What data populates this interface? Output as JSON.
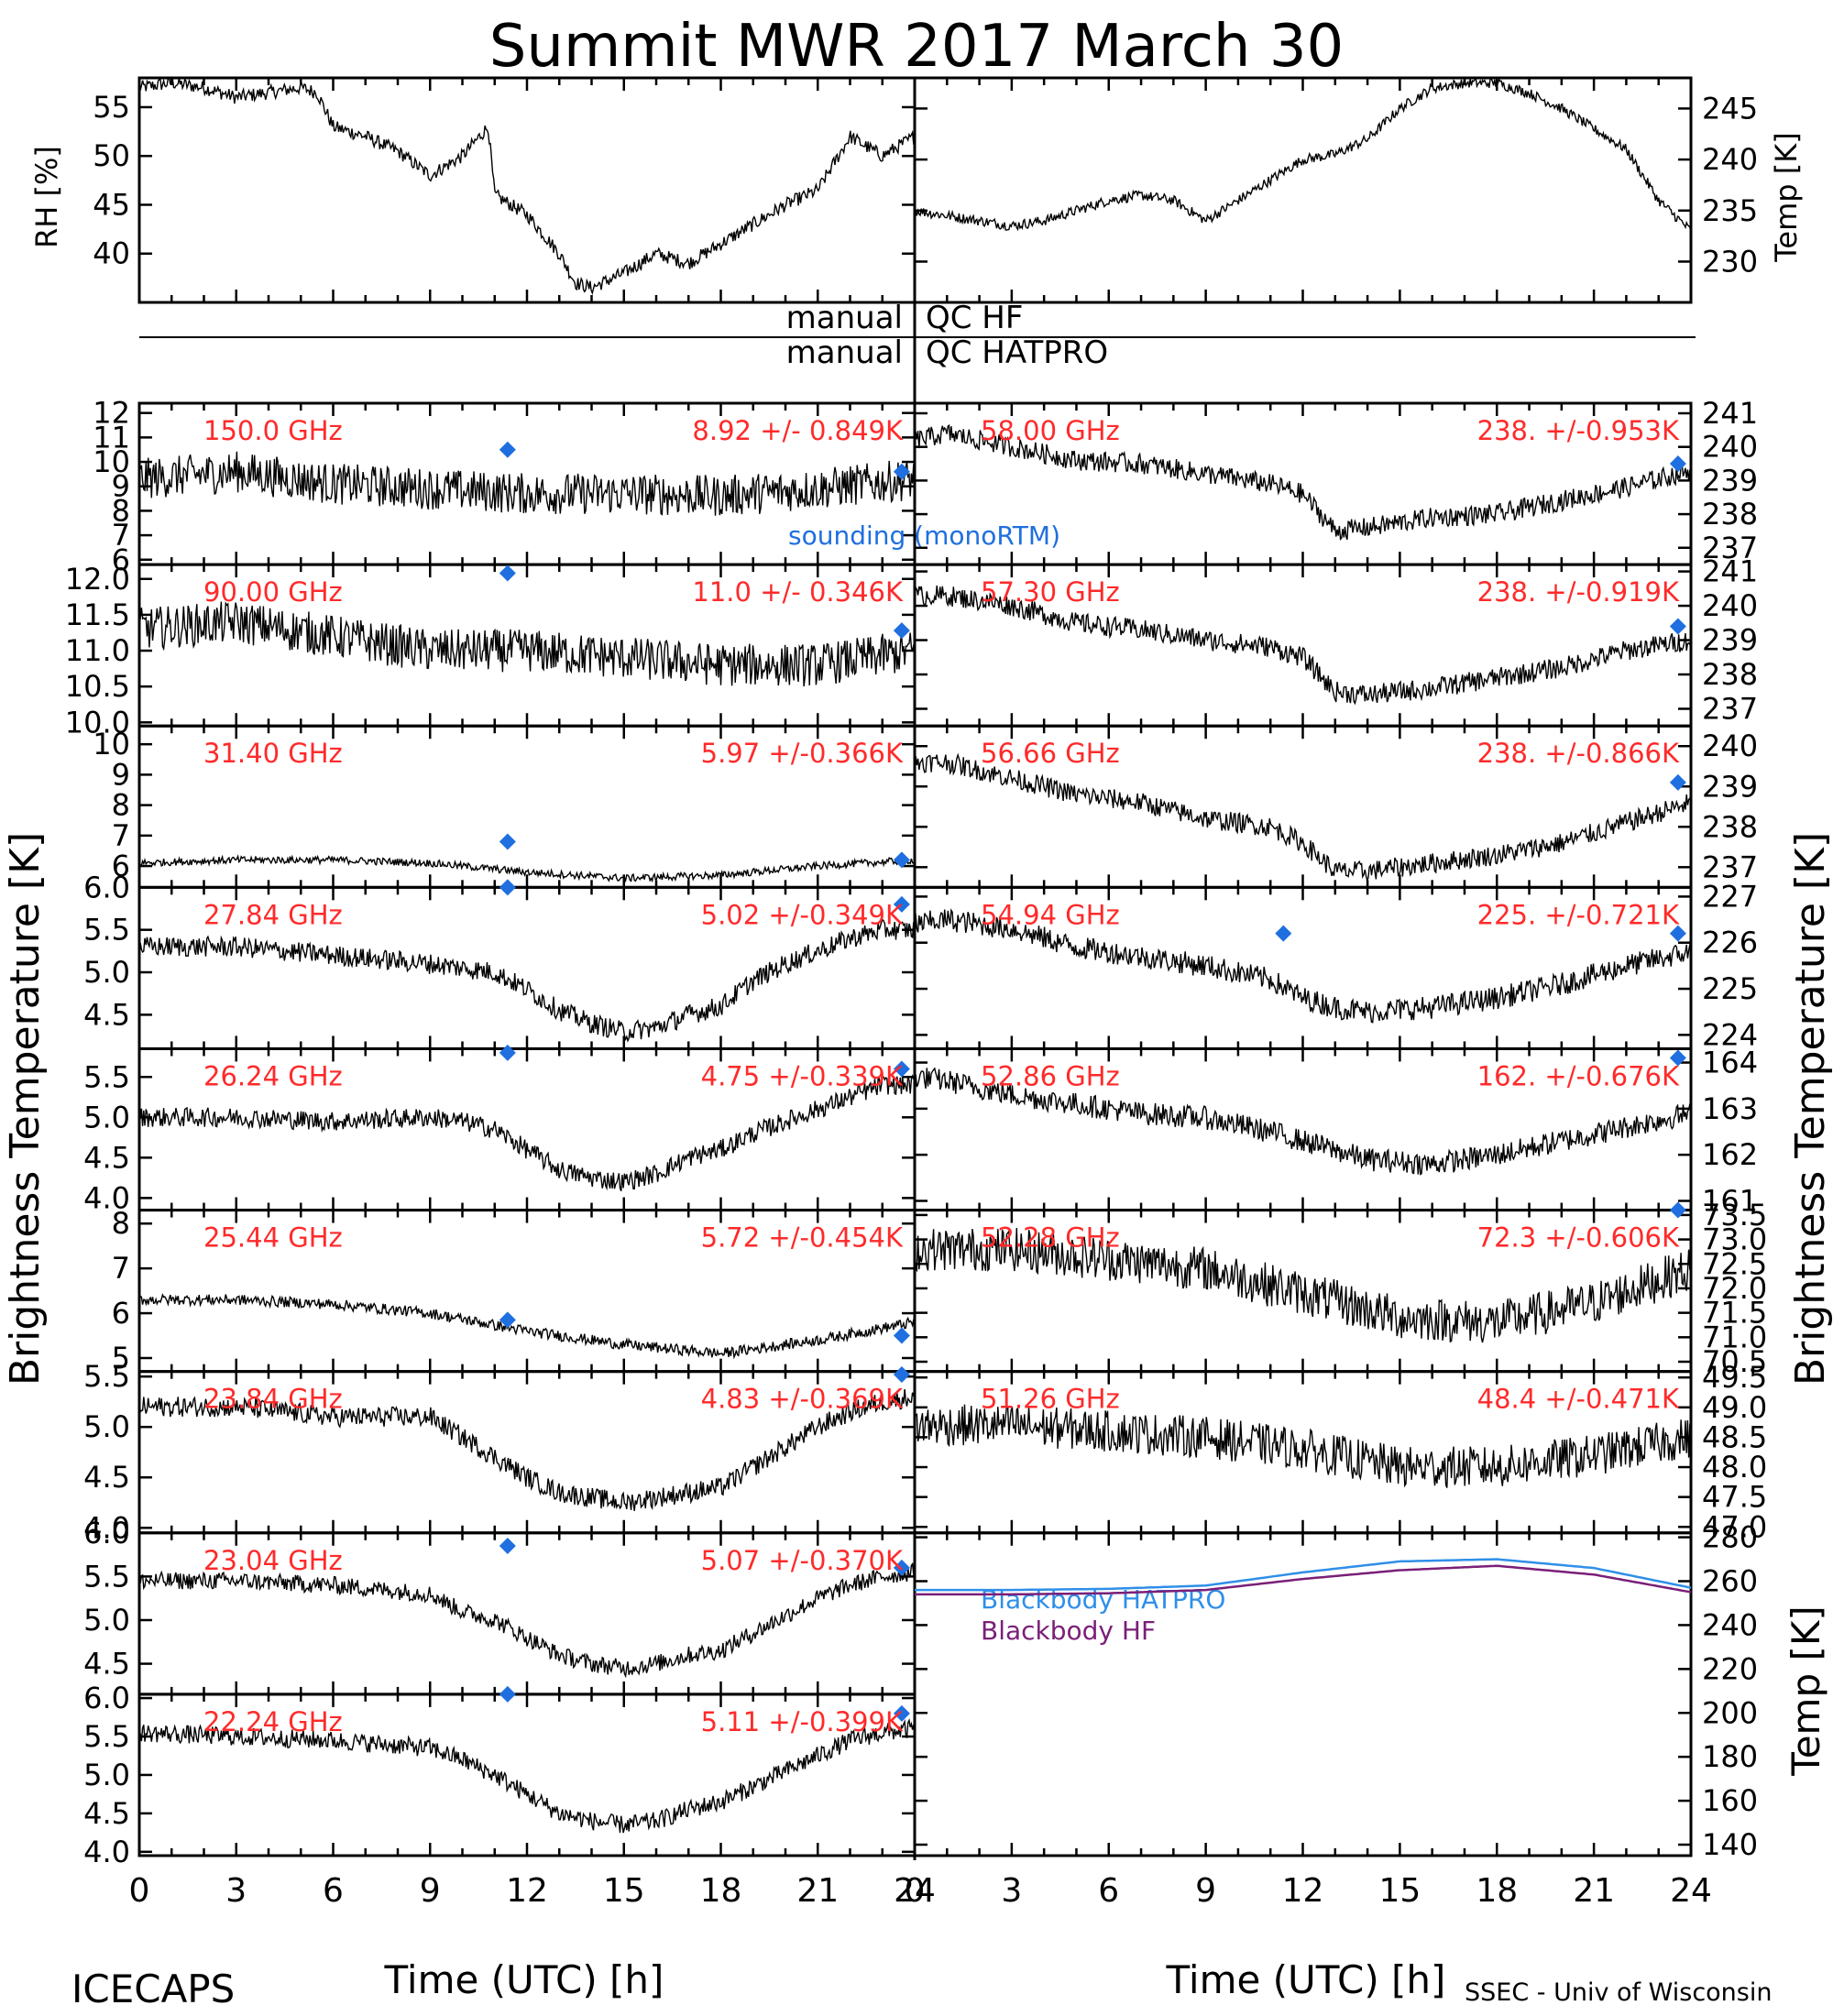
{
  "title": "Summit MWR 2017 March 30",
  "footer_left": "ICECAPS",
  "footer_right": "SSEC - Univ of Wisconsin",
  "flags": {
    "row1_left": "manual",
    "row1_right": "QC HF",
    "row2_left": "manual",
    "row2_right": "QC HATPRO"
  },
  "colors": {
    "data": "#000000",
    "label": "#ff2a2a",
    "sounding": "#1f6fe0",
    "hatpro": "#2f8fe8",
    "hf": "#7a1f78"
  },
  "chart_data": {
    "met": {
      "type": "line",
      "rh": {
        "ylabel": "RH [%]",
        "ticks": [
          40,
          45,
          50,
          55
        ],
        "ylim": [
          35,
          58
        ],
        "x": [
          0,
          1,
          2,
          3,
          4,
          5,
          5.5,
          6,
          7,
          8,
          9,
          10,
          10.8,
          11,
          12,
          13,
          13.5,
          14,
          15,
          16,
          17,
          18,
          19,
          20,
          21,
          22,
          23,
          24
        ],
        "y": [
          57,
          57.5,
          57,
          56,
          56.5,
          57,
          56.5,
          53,
          52,
          50.5,
          48,
          50,
          53,
          46,
          44,
          40,
          37,
          36.5,
          38,
          40,
          39,
          41,
          43,
          45,
          46.5,
          52,
          50,
          52
        ]
      },
      "temp": {
        "ylabel": "Temp [K]",
        "ticks": [
          230,
          235,
          240,
          245
        ],
        "ylim": [
          226,
          248
        ],
        "x": [
          0,
          2,
          3,
          4,
          6,
          7,
          8,
          9,
          10,
          11,
          12,
          13,
          14,
          15,
          16,
          17,
          18,
          19,
          20,
          21,
          22,
          23,
          24
        ],
        "y": [
          235,
          234,
          233.5,
          234,
          236,
          236.5,
          236,
          234,
          236,
          238,
          240,
          240.5,
          242,
          245,
          247,
          247.5,
          247.5,
          246.5,
          245,
          243,
          241,
          236,
          233
        ]
      }
    },
    "xaxis": {
      "xlabel": "Time (UTC) [h]",
      "ticks": [
        0,
        3,
        6,
        9,
        12,
        15,
        18,
        21,
        24
      ],
      "xlim": [
        0,
        24
      ]
    },
    "left_ylabel": "Brightness Temperature [K]",
    "right_ylabel": "Brightness Temperature [K]",
    "left_channels": [
      {
        "freq": "150.0 GHz",
        "stat": "8.92 +/- 0.849K",
        "ticks": [
          6,
          7,
          8,
          9,
          10,
          11,
          12
        ],
        "ylim": [
          5.8,
          12.4
        ],
        "noise": 0.85,
        "x": [
          0,
          3,
          6,
          9,
          12,
          15,
          18,
          21,
          24
        ],
        "y": [
          9.3,
          9.6,
          9.1,
          8.9,
          8.7,
          8.7,
          8.6,
          8.9,
          9.3
        ],
        "sounding": [
          [
            11.4,
            10.5
          ],
          [
            23.6,
            9.6
          ]
        ],
        "sounding_label": "sounding (monoRTM)"
      },
      {
        "freq": "90.00 GHz",
        "stat": "11.0 +/- 0.346K",
        "ticks": [
          "10.0",
          "10.5",
          "11.0",
          "11.5",
          "12.0"
        ],
        "ylim": [
          9.95,
          12.2
        ],
        "noise": 0.3,
        "x": [
          0,
          3,
          6,
          9,
          12,
          15,
          18,
          21,
          24
        ],
        "y": [
          11.3,
          11.4,
          11.2,
          11.0,
          11.0,
          10.9,
          10.8,
          10.8,
          11.0
        ],
        "sounding": [
          [
            11.4,
            12.08
          ],
          [
            23.6,
            11.28
          ]
        ]
      },
      {
        "freq": "31.40 GHz",
        "stat": "5.97 +/-0.366K",
        "ticks": [
          6,
          7,
          8,
          9,
          10
        ],
        "ylim": [
          5.3,
          10.6
        ],
        "noise": 0.12,
        "x": [
          0,
          3,
          6,
          9,
          12,
          15,
          18,
          21,
          24
        ],
        "y": [
          6.1,
          6.2,
          6.2,
          6.1,
          5.8,
          5.6,
          5.7,
          6.0,
          6.2
        ],
        "sounding": [
          [
            11.4,
            6.8
          ],
          [
            23.6,
            6.2
          ]
        ]
      },
      {
        "freq": "27.84 GHz",
        "stat": "5.02 +/-0.349K",
        "ticks": [
          "4.5",
          "5.0",
          "5.5",
          "6.0"
        ],
        "ylim": [
          4.1,
          6.0
        ],
        "noise": 0.12,
        "x": [
          0,
          3,
          6,
          9,
          10,
          11,
          12,
          13,
          14,
          15,
          16,
          17,
          18,
          19,
          20,
          21,
          22,
          23,
          24
        ],
        "y": [
          5.3,
          5.3,
          5.2,
          5.1,
          5.05,
          5.0,
          4.8,
          4.55,
          4.4,
          4.3,
          4.35,
          4.5,
          4.6,
          4.9,
          5.1,
          5.25,
          5.4,
          5.5,
          5.5
        ],
        "sounding": [
          [
            11.4,
            6.0
          ],
          [
            23.6,
            5.8
          ]
        ]
      },
      {
        "freq": "26.24 GHz",
        "stat": "4.75 +/-0.339K",
        "ticks": [
          "4.0",
          "4.5",
          "5.0",
          "5.5"
        ],
        "ylim": [
          3.85,
          5.85
        ],
        "noise": 0.12,
        "x": [
          0,
          3,
          6,
          9,
          10,
          11,
          12,
          13,
          14,
          15,
          16,
          17,
          18,
          19,
          20,
          21,
          22,
          23,
          24
        ],
        "y": [
          5.0,
          5.0,
          4.95,
          5.0,
          4.95,
          4.85,
          4.6,
          4.35,
          4.25,
          4.2,
          4.3,
          4.5,
          4.6,
          4.8,
          4.95,
          5.1,
          5.25,
          5.4,
          5.4
        ],
        "sounding": [
          [
            11.4,
            5.8
          ],
          [
            23.6,
            5.6
          ]
        ]
      },
      {
        "freq": "25.44 GHz",
        "stat": "5.72 +/-0.454K",
        "ticks": [
          5,
          6,
          7,
          8
        ],
        "ylim": [
          4.7,
          8.3
        ],
        "noise": 0.12,
        "x": [
          0,
          3,
          6,
          9,
          12,
          15,
          18,
          21,
          24
        ],
        "y": [
          6.3,
          6.3,
          6.2,
          6.0,
          5.6,
          5.3,
          5.1,
          5.4,
          5.8
        ],
        "sounding": [
          [
            11.4,
            5.85
          ],
          [
            23.6,
            5.5
          ]
        ]
      },
      {
        "freq": "23.84 GHz",
        "stat": "4.83 +/-0.369K",
        "ticks": [
          "4.0",
          "4.5",
          "5.0",
          "5.5"
        ],
        "ylim": [
          3.95,
          5.55
        ],
        "noise": 0.1,
        "x": [
          0,
          3,
          6,
          9,
          10,
          11,
          12,
          13,
          14,
          15,
          16,
          17,
          18,
          19,
          20,
          21,
          22,
          23,
          24
        ],
        "y": [
          5.2,
          5.2,
          5.1,
          5.1,
          4.9,
          4.7,
          4.5,
          4.35,
          4.3,
          4.25,
          4.3,
          4.35,
          4.4,
          4.6,
          4.8,
          5.0,
          5.15,
          5.25,
          5.3
        ],
        "sounding": [
          [
            23.6,
            5.52
          ]
        ]
      },
      {
        "freq": "23.04 GHz",
        "stat": "5.07 +/-0.370K",
        "ticks": [
          "4.5",
          "5.0",
          "5.5",
          "6.0"
        ],
        "ylim": [
          4.15,
          6.0
        ],
        "noise": 0.1,
        "x": [
          0,
          3,
          6,
          9,
          10,
          11,
          12,
          13,
          14,
          15,
          16,
          17,
          18,
          19,
          20,
          21,
          22,
          23,
          24
        ],
        "y": [
          5.45,
          5.45,
          5.4,
          5.3,
          5.1,
          5.0,
          4.8,
          4.6,
          4.5,
          4.45,
          4.5,
          4.6,
          4.65,
          4.85,
          5.05,
          5.25,
          5.4,
          5.5,
          5.55
        ],
        "sounding": [
          [
            11.4,
            5.85
          ],
          [
            23.6,
            5.6
          ]
        ]
      },
      {
        "freq": "22.24 GHz",
        "stat": "5.11 +/-0.399K",
        "ticks": [
          "4.0",
          "4.5",
          "5.0",
          "5.5",
          "6.0"
        ],
        "ylim": [
          3.95,
          6.05
        ],
        "noise": 0.12,
        "x": [
          0,
          3,
          6,
          9,
          10,
          11,
          12,
          13,
          14,
          15,
          16,
          17,
          18,
          19,
          20,
          21,
          22,
          23,
          24
        ],
        "y": [
          5.55,
          5.5,
          5.45,
          5.35,
          5.2,
          5.0,
          4.75,
          4.5,
          4.4,
          4.35,
          4.4,
          4.55,
          4.65,
          4.85,
          5.05,
          5.25,
          5.45,
          5.55,
          5.6
        ],
        "sounding": [
          [
            11.4,
            6.05
          ],
          [
            23.6,
            5.8
          ]
        ]
      }
    ],
    "right_channels": [
      {
        "freq": "58.00 GHz",
        "stat": "238. +/-0.953K",
        "ticks": [
          237,
          238,
          239,
          240,
          241
        ],
        "ylim": [
          236.5,
          241.3
        ],
        "noise": 0.3,
        "x": [
          0,
          1,
          3,
          5,
          7,
          9,
          11,
          12,
          13,
          14,
          16,
          18,
          20,
          22,
          24
        ],
        "y": [
          240.2,
          240.4,
          240.0,
          239.6,
          239.5,
          239.2,
          238.9,
          238.6,
          237.5,
          237.6,
          237.9,
          238.0,
          238.4,
          238.8,
          239.3
        ],
        "sounding": [
          [
            23.6,
            239.5
          ]
        ]
      },
      {
        "freq": "57.30 GHz",
        "stat": "238. +/-0.919K",
        "ticks": [
          237,
          238,
          239,
          240,
          241
        ],
        "ylim": [
          236.5,
          241.2
        ],
        "noise": 0.3,
        "x": [
          0,
          1,
          3,
          5,
          7,
          9,
          11,
          12,
          13,
          14,
          16,
          18,
          20,
          22,
          24
        ],
        "y": [
          240.3,
          240.3,
          240.0,
          239.5,
          239.3,
          239.0,
          238.8,
          238.5,
          237.5,
          237.4,
          237.6,
          237.9,
          238.2,
          238.7,
          239.0
        ],
        "sounding": [
          [
            23.6,
            239.4
          ]
        ]
      },
      {
        "freq": "56.66 GHz",
        "stat": "238. +/-0.866K",
        "ticks": [
          237,
          238,
          239,
          240
        ],
        "ylim": [
          236.5,
          240.5
        ],
        "noise": 0.25,
        "x": [
          0,
          1,
          3,
          5,
          7,
          9,
          11,
          12,
          13,
          14,
          16,
          18,
          20,
          22,
          24
        ],
        "y": [
          239.6,
          239.6,
          239.2,
          238.8,
          238.6,
          238.2,
          238.0,
          237.6,
          236.9,
          236.9,
          237.1,
          237.3,
          237.6,
          238.1,
          238.6
        ],
        "sounding": [
          [
            23.6,
            239.1
          ]
        ]
      },
      {
        "freq": "54.94 GHz",
        "stat": "225. +/-0.721K",
        "ticks": [
          224,
          225,
          226,
          227
        ],
        "ylim": [
          223.7,
          227.2
        ],
        "noise": 0.25,
        "x": [
          0,
          1,
          3,
          5,
          7,
          9,
          11,
          12,
          13,
          14,
          16,
          18,
          20,
          22,
          24
        ],
        "y": [
          226.4,
          226.5,
          226.3,
          225.9,
          225.7,
          225.5,
          225.2,
          224.8,
          224.6,
          224.5,
          224.6,
          224.8,
          225.1,
          225.5,
          225.8
        ],
        "sounding": [
          [
            11.4,
            226.2
          ],
          [
            23.6,
            226.2
          ]
        ]
      },
      {
        "freq": "52.86 GHz",
        "stat": "162. +/-0.676K",
        "ticks": [
          161,
          162,
          163,
          164
        ],
        "ylim": [
          160.8,
          164.3
        ],
        "noise": 0.25,
        "x": [
          0,
          1,
          3,
          5,
          7,
          9,
          11,
          12,
          13,
          14,
          16,
          18,
          20,
          22,
          24
        ],
        "y": [
          163.7,
          163.6,
          163.3,
          163.1,
          162.9,
          162.8,
          162.5,
          162.3,
          162.1,
          161.9,
          161.8,
          162.0,
          162.3,
          162.6,
          162.9
        ],
        "sounding": [
          [
            23.6,
            164.1
          ]
        ]
      },
      {
        "freq": "52.28 GHz",
        "stat": "72.3 +/-0.606K",
        "ticks": [
          "70.5",
          "71.0",
          "71.5",
          "72.0",
          "72.5",
          "73.0",
          "73.5"
        ],
        "ylim": [
          70.3,
          73.6
        ],
        "noise": 0.45,
        "x": [
          0,
          3,
          6,
          9,
          12,
          15,
          18,
          21,
          24
        ],
        "y": [
          72.8,
          72.8,
          72.6,
          72.4,
          71.9,
          71.4,
          71.3,
          71.7,
          72.4
        ],
        "sounding": [
          [
            23.6,
            73.6
          ]
        ]
      },
      {
        "freq": "51.26 GHz",
        "stat": "48.4 +/-0.471K",
        "ticks": [
          "47.0",
          "47.5",
          "48.0",
          "48.5",
          "49.0",
          "49.5"
        ],
        "ylim": [
          46.9,
          49.6
        ],
        "noise": 0.35,
        "x": [
          0,
          3,
          6,
          9,
          12,
          15,
          18,
          21,
          24
        ],
        "y": [
          48.7,
          48.7,
          48.6,
          48.5,
          48.3,
          48.0,
          48.0,
          48.2,
          48.5
        ],
        "sounding": []
      }
    ],
    "blackbody": {
      "ylabel": "Temp [K]",
      "ticks": [
        140,
        160,
        180,
        200,
        220,
        240,
        260,
        280
      ],
      "ylim": [
        135,
        282
      ],
      "x": [
        0,
        3,
        6,
        9,
        12,
        15,
        18,
        21,
        24
      ],
      "series": [
        {
          "name": "Blackbody HATPRO",
          "values": [
            256,
            256,
            256.5,
            258,
            264,
            269,
            270,
            266,
            257
          ]
        },
        {
          "name": "Blackbody HF",
          "values": [
            254,
            254,
            254.5,
            256,
            261,
            265,
            267,
            263,
            255
          ]
        }
      ]
    }
  }
}
